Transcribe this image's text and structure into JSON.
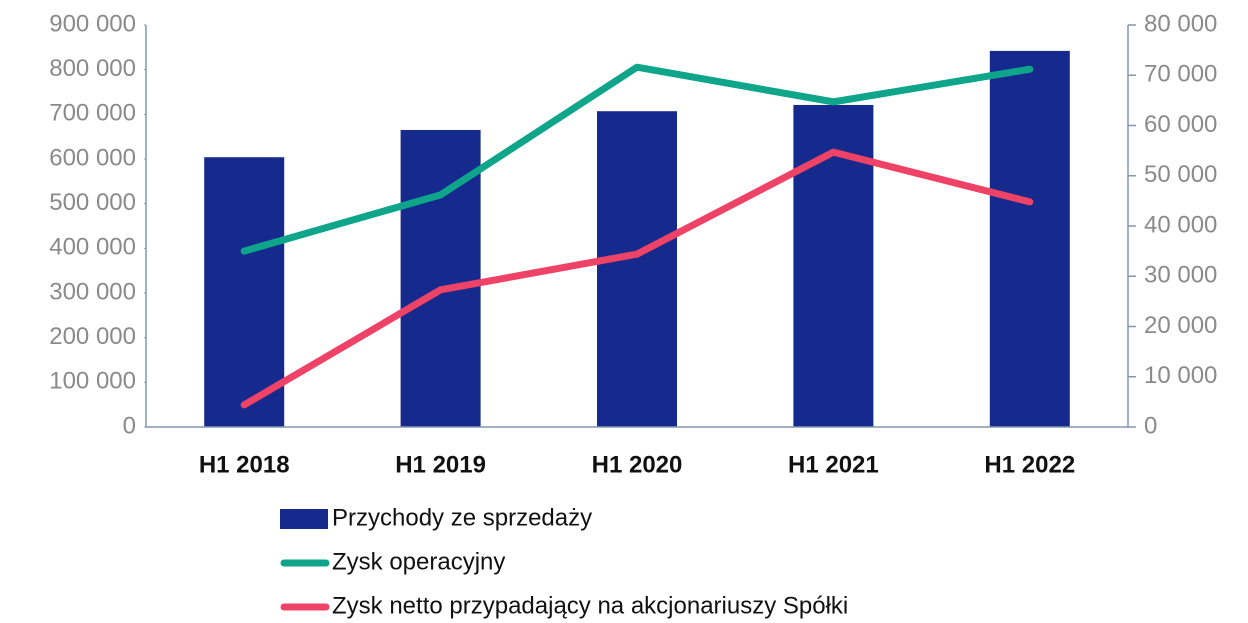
{
  "chart_data": {
    "type": "bar",
    "categories": [
      "H1 2018",
      "H1 2019",
      "H1 2020",
      "H1 2021",
      "H1 2022"
    ],
    "series": [
      {
        "name": "Przychody ze sprzedaży",
        "type": "bar",
        "color": "#162a8e",
        "values": [
          604000,
          665000,
          707000,
          721000,
          842000
        ]
      },
      {
        "name": "Zysk operacyjny",
        "type": "line",
        "axis": "y2",
        "color": "#0ea58a",
        "values": [
          35000,
          46200,
          71600,
          64700,
          71200
        ]
      },
      {
        "name": "Zysk netto przypadający na akcjonariuszy Spółki",
        "type": "line",
        "axis": "y2",
        "color": "#ee4266",
        "values": [
          4400,
          27300,
          34400,
          54700,
          44800
        ]
      }
    ],
    "ylim": [
      0,
      900000
    ],
    "yticks": [
      0,
      {
        "value": 100000,
        "label": "100 000"
      },
      {
        "value": 200000,
        "label": "200 000"
      },
      {
        "value": 300000,
        "label": "300 000"
      },
      {
        "value": 400000,
        "label": "400 000"
      },
      {
        "value": 500000,
        "label": "500 000"
      },
      {
        "value": 600000,
        "label": "600 000"
      },
      {
        "value": 700000,
        "label": "700 000"
      },
      {
        "value": 800000,
        "label": "800 000"
      },
      {
        "value": 900000,
        "label": "900 000"
      }
    ],
    "y2lim": [
      0,
      80000
    ],
    "y2ticks": [
      0,
      {
        "value": 10000,
        "label": "10 000"
      },
      {
        "value": 20000,
        "label": "20 000"
      },
      {
        "value": 30000,
        "label": "30 000"
      },
      {
        "value": 40000,
        "label": "40 000"
      },
      {
        "value": 50000,
        "label": "50 000"
      },
      {
        "value": 60000,
        "label": "60 000"
      },
      {
        "value": 70000,
        "label": "70 000"
      },
      {
        "value": 80000,
        "label": "80 000"
      }
    ],
    "grid": false,
    "legend": "bottom"
  }
}
